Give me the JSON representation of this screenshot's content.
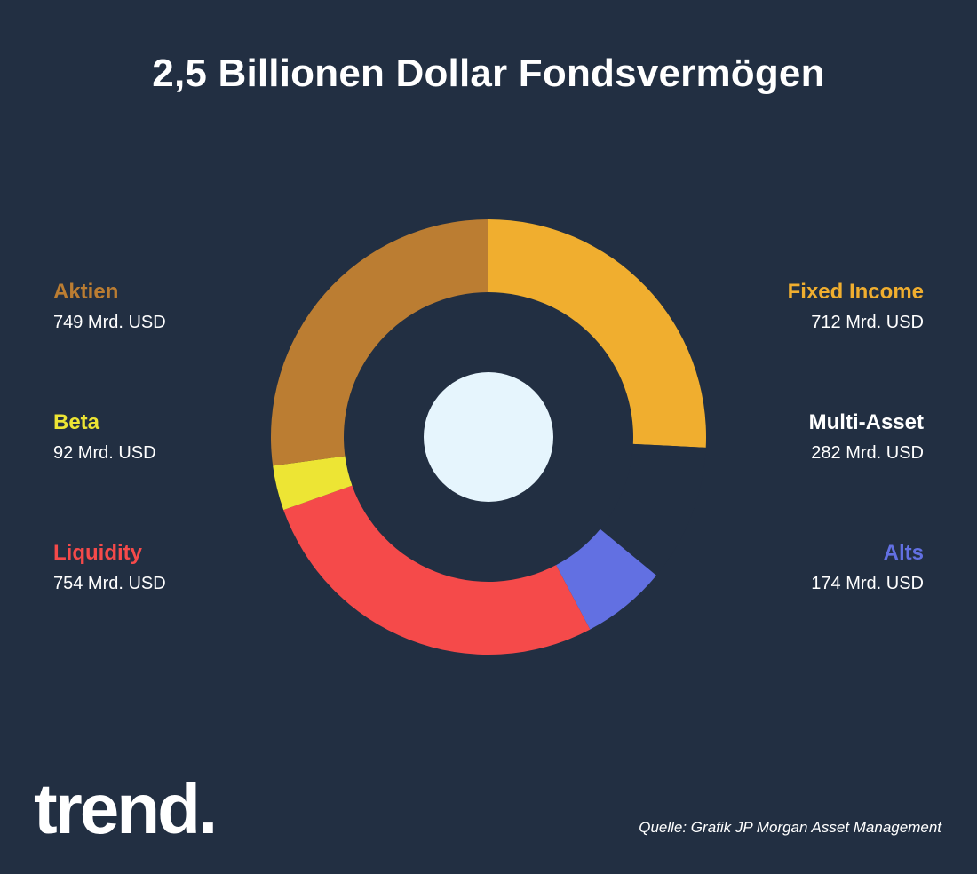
{
  "title": "2,5 Billionen Dollar Fondsvermögen",
  "source": "Quelle: Grafik JP Morgan Asset Management",
  "logo_text": "trend.",
  "center_color": "#e6f5fd",
  "chart_data": {
    "type": "pie",
    "donut": true,
    "title": "2,5 Billionen Dollar Fondsvermögen",
    "unit": "Mrd. USD",
    "slices": [
      {
        "name": "Fixed Income",
        "value": 712,
        "label": "712 Mrd. USD",
        "color": "#f0ae2f"
      },
      {
        "name": "Multi-Asset",
        "value": 282,
        "label": "282 Mrd. USD",
        "color": "#222f42"
      },
      {
        "name": "Alts",
        "value": 174,
        "label": "174 Mrd. USD",
        "color": "#6270e2"
      },
      {
        "name": "Liquidity",
        "value": 754,
        "label": "754 Mrd. USD",
        "color": "#f54a4a"
      },
      {
        "name": "Beta",
        "value": 92,
        "label": "92 Mrd. USD",
        "color": "#ede534"
      },
      {
        "name": "Aktien",
        "value": 749,
        "label": "749 Mrd. USD",
        "color": "#bb7d32"
      }
    ],
    "legend_colors": {
      "Fixed Income": "#f0ae2f",
      "Multi-Asset": "#ffffff",
      "Alts": "#6270e2",
      "Liquidity": "#f54a4a",
      "Beta": "#ede534",
      "Aktien": "#bb7d32"
    }
  }
}
